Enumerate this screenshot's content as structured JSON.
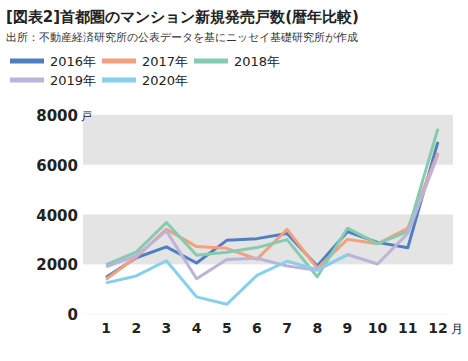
{
  "chart_data": {
    "type": "line",
    "title": "[図表2]首都圏のマンション新規発売戸数(暦年比較)",
    "subtitle": "出所：不動産経済研究所の公表データを基にニッセイ基礎研究所が作成",
    "y_label": "戸",
    "x_label": "月",
    "categories": [
      "1",
      "2",
      "3",
      "4",
      "5",
      "6",
      "7",
      "8",
      "9",
      "10",
      "11",
      "12"
    ],
    "series": [
      {
        "name": "2016年",
        "color": "#4f7fc1",
        "values": [
          1480,
          2260,
          2700,
          2050,
          2960,
          3030,
          3240,
          1930,
          3310,
          2880,
          2660,
          6920
        ]
      },
      {
        "name": "2017年",
        "color": "#f2a07e",
        "values": [
          1400,
          2290,
          3410,
          2710,
          2640,
          2200,
          3400,
          1840,
          3000,
          2820,
          3440,
          6480
        ]
      },
      {
        "name": "2018年",
        "color": "#83ccb2",
        "values": [
          1980,
          2490,
          3680,
          2360,
          2480,
          2670,
          2990,
          1500,
          3450,
          2830,
          3310,
          7450
        ]
      },
      {
        "name": "2019年",
        "color": "#bcb3da",
        "values": [
          1900,
          2340,
          3340,
          1420,
          2190,
          2240,
          1930,
          1760,
          2390,
          2010,
          3240,
          6390
        ]
      },
      {
        "name": "2020年",
        "color": "#86d0ea",
        "values": [
          1250,
          1530,
          2140,
          690,
          390,
          1550,
          2120,
          1790,
          2370,
          null,
          null,
          null
        ]
      }
    ],
    "ylim": [
      0,
      8000
    ],
    "yticks": [
      0,
      2000,
      4000,
      6000,
      8000
    ],
    "grid": true,
    "legend": "top-left"
  }
}
